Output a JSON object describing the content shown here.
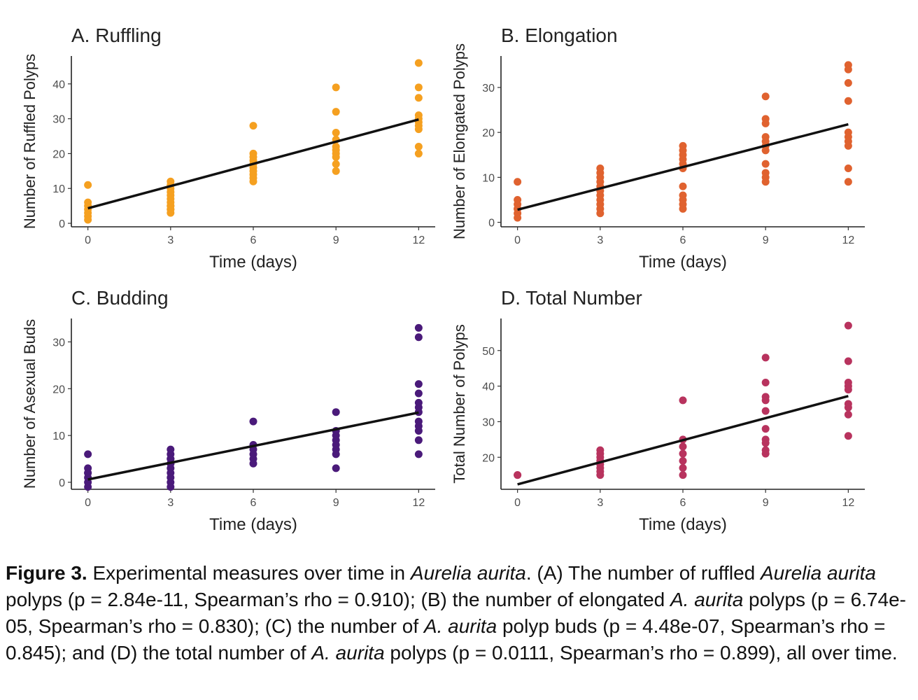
{
  "chart_data": [
    {
      "type": "scatter",
      "title": "A. Ruffling",
      "xlabel": "Time (days)",
      "ylabel": "Number of Ruffled Polyps",
      "xticks": [
        0,
        3,
        6,
        9,
        12
      ],
      "yticks": [
        0,
        10,
        20,
        30,
        40
      ],
      "xlim": [
        -0.6,
        12.6
      ],
      "ylim": [
        -1,
        48
      ],
      "color": "#F5A020",
      "series": [
        {
          "x": [
            0,
            0,
            0,
            0,
            0,
            0,
            0,
            3,
            3,
            3,
            3,
            3,
            3,
            3,
            3,
            3,
            3,
            3,
            3,
            6,
            6,
            6,
            6,
            6,
            6,
            6,
            6,
            6,
            6,
            9,
            9,
            9,
            9,
            9,
            9,
            9,
            9,
            9,
            9,
            12,
            12,
            12,
            12,
            12,
            12,
            12,
            12,
            12,
            12
          ],
          "y": [
            11,
            6,
            5,
            4,
            3,
            2,
            1,
            12,
            11,
            10,
            9,
            8,
            7,
            6,
            5,
            4,
            3,
            4,
            5,
            28,
            20,
            19,
            18,
            17,
            16,
            15,
            14,
            13,
            12,
            39,
            32,
            26,
            24,
            22,
            21,
            20,
            19,
            17,
            15,
            46,
            39,
            36,
            31,
            29,
            28,
            27,
            22,
            20,
            30
          ]
        }
      ],
      "trend": {
        "x": [
          0,
          12
        ],
        "y": [
          4.3,
          29.8
        ]
      }
    },
    {
      "type": "scatter",
      "title": "B. Elongation",
      "xlabel": "Time (days)",
      "ylabel": "Number of Elongated Polyps",
      "xticks": [
        0,
        3,
        6,
        9,
        12
      ],
      "yticks": [
        0,
        10,
        20,
        30
      ],
      "xlim": [
        -0.6,
        12.6
      ],
      "ylim": [
        -1,
        37
      ],
      "color": "#E0622F",
      "series": [
        {
          "x": [
            0,
            0,
            0,
            0,
            0,
            0,
            0,
            3,
            3,
            3,
            3,
            3,
            3,
            3,
            3,
            3,
            3,
            3,
            6,
            6,
            6,
            6,
            6,
            6,
            6,
            6,
            6,
            6,
            6,
            9,
            9,
            9,
            9,
            9,
            9,
            9,
            9,
            9,
            9,
            9,
            12,
            12,
            12,
            12,
            12,
            12,
            12,
            12,
            12,
            12
          ],
          "y": [
            9,
            5,
            4,
            3,
            2,
            1,
            3,
            12,
            11,
            10,
            9,
            8,
            7,
            6,
            5,
            4,
            3,
            2,
            17,
            16,
            15,
            14,
            13,
            12,
            8,
            6,
            5,
            4,
            3,
            28,
            23,
            22,
            19,
            18,
            17,
            16,
            13,
            11,
            10,
            9,
            35,
            34,
            31,
            27,
            20,
            19,
            18,
            17,
            12,
            9
          ]
        }
      ],
      "trend": {
        "x": [
          0,
          12
        ],
        "y": [
          2.8,
          21.8
        ]
      }
    },
    {
      "type": "scatter",
      "title": "C. Budding",
      "xlabel": "Time (days)",
      "ylabel": "Number of Asexual Buds",
      "xticks": [
        0,
        3,
        6,
        9,
        12
      ],
      "yticks": [
        0,
        10,
        20,
        30
      ],
      "xlim": [
        -0.6,
        12.6
      ],
      "ylim": [
        -1.5,
        35
      ],
      "color": "#4A1A7A",
      "series": [
        {
          "x": [
            0,
            0,
            0,
            0,
            0,
            0,
            0,
            3,
            3,
            3,
            3,
            3,
            3,
            3,
            3,
            3,
            3,
            3,
            6,
            6,
            6,
            6,
            6,
            6,
            9,
            9,
            9,
            9,
            9,
            9,
            9,
            9,
            12,
            12,
            12,
            12,
            12,
            12,
            12,
            12,
            12,
            12,
            12,
            12
          ],
          "y": [
            6,
            3,
            2,
            1,
            0,
            -1,
            2,
            7,
            6,
            5,
            4,
            3,
            2,
            1,
            0,
            -1,
            5,
            4,
            13,
            8,
            7,
            6,
            5,
            4,
            15,
            11,
            10,
            9,
            8,
            7,
            6,
            3,
            33,
            31,
            21,
            19,
            17,
            16,
            15,
            13,
            12,
            11,
            9,
            6
          ]
        }
      ],
      "trend": {
        "x": [
          0,
          12
        ],
        "y": [
          0.6,
          14.9
        ]
      }
    },
    {
      "type": "scatter",
      "title": "D. Total Number",
      "xlabel": "Time (days)",
      "ylabel": "Total Number of Polyps",
      "xticks": [
        0,
        3,
        6,
        9,
        12
      ],
      "yticks": [
        20,
        30,
        40,
        50
      ],
      "xlim": [
        -0.6,
        12.6
      ],
      "ylim": [
        11,
        59
      ],
      "color": "#B8335E",
      "series": [
        {
          "x": [
            0,
            0,
            3,
            3,
            3,
            3,
            3,
            3,
            3,
            3,
            6,
            6,
            6,
            6,
            6,
            6,
            6,
            9,
            9,
            9,
            9,
            9,
            9,
            9,
            9,
            9,
            9,
            12,
            12,
            12,
            12,
            12,
            12,
            12,
            12,
            12
          ],
          "y": [
            15,
            15,
            22,
            21,
            20,
            18,
            17,
            16,
            15,
            19,
            36,
            25,
            23,
            21,
            19,
            17,
            15,
            48,
            41,
            37,
            36,
            33,
            28,
            25,
            24,
            22,
            21,
            57,
            47,
            41,
            40,
            39,
            35,
            34,
            32,
            26
          ]
        }
      ],
      "trend": {
        "x": [
          0,
          12
        ],
        "y": [
          12.4,
          37.2
        ]
      }
    }
  ],
  "caption": {
    "label": "Figure 3.",
    "parts": [
      " Experimental measures over time in ",
      "Aurelia aurita",
      ". (A) The number of ruffled ",
      "Aurelia aurita",
      " polyps (p = 2.84e-11, Spearman’s rho = 0.910); (B) the number of elongated ",
      "A. aurita",
      " polyps (p = 6.74e-05, Spearman’s rho = 0.830); (C) the number of ",
      "A. aurita",
      " polyp buds (p = 4.48e-07, Spearman’s rho = 0.845); and (D) the total number of ",
      "A. aurita",
      " polyps (p = 0.0111, Spearman’s rho = 0.899), all over time."
    ]
  }
}
